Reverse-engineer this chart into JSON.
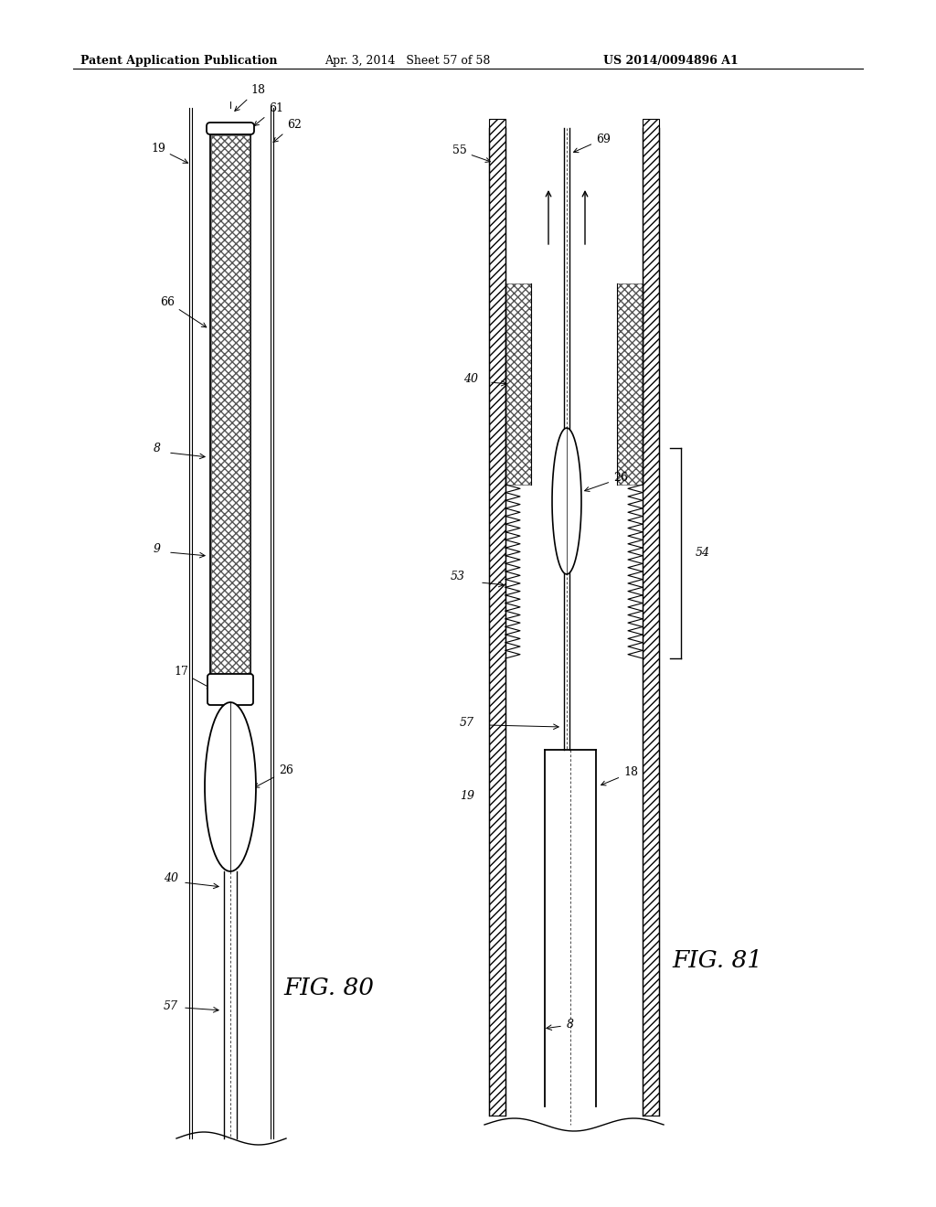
{
  "bg_color": "#ffffff",
  "header_text": "Patent Application Publication",
  "header_date": "Apr. 3, 2014   Sheet 57 of 58",
  "header_patent": "US 2014/0094896 A1",
  "fig80_label": "FIG. 80",
  "fig81_label": "FIG. 81",
  "line_color": "#000000"
}
